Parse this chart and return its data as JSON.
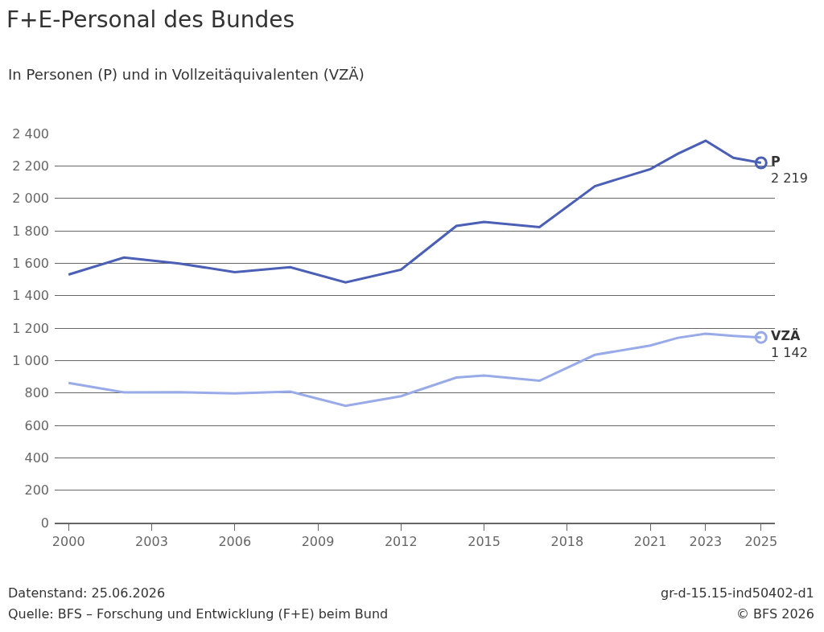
{
  "chart_data": {
    "type": "line",
    "title": "F+E-Personal des Bundes",
    "subtitle": "In Personen (P) und in Vollzeitäquivalenten (VZÄ)",
    "x": [
      2000,
      2002,
      2004,
      2006,
      2008,
      2010,
      2012,
      2014,
      2015,
      2017,
      2019,
      2021,
      2022,
      2023,
      2024,
      2025
    ],
    "series": [
      {
        "name": "P",
        "color": "#4a5fb5",
        "values": [
          1530,
          1635,
          1598,
          1545,
          1575,
          1482,
          1560,
          1830,
          1855,
          1822,
          2075,
          2180,
          2275,
          2355,
          2250,
          2219
        ],
        "value_labels": [
          null,
          null,
          null,
          null,
          null,
          null,
          null,
          null,
          null,
          null,
          null,
          null,
          null,
          null,
          null,
          "2 219"
        ]
      },
      {
        "name": "VZÄ",
        "color": "#98abe8",
        "values": [
          862,
          803,
          805,
          797,
          808,
          720,
          780,
          895,
          908,
          875,
          1035,
          1092,
          1140,
          1165,
          1152,
          1142
        ],
        "value_labels": [
          null,
          null,
          null,
          null,
          null,
          null,
          null,
          null,
          null,
          null,
          null,
          null,
          null,
          null,
          null,
          "1 142"
        ]
      }
    ],
    "xlim": [
      1999.5,
      2025.5
    ],
    "xticks": [
      2000,
      2003,
      2006,
      2009,
      2012,
      2015,
      2018,
      2021,
      2023,
      2025
    ],
    "ylim": [
      0,
      2400
    ],
    "yticks": [
      0,
      200,
      400,
      600,
      800,
      {
        "value": 1000,
        "label": "1 000"
      },
      {
        "value": 1200,
        "label": "1 200"
      },
      {
        "value": 1400,
        "label": "1 400"
      },
      {
        "value": 1600,
        "label": "1 600"
      },
      {
        "value": 1800,
        "label": "1 800"
      },
      {
        "value": 2000,
        "label": "2 000"
      },
      {
        "value": 2200,
        "label": "2 200"
      },
      {
        "value": 2400,
        "label": "2 400"
      }
    ],
    "grid": "y",
    "legend": false,
    "line_style": "solid",
    "annotations": [
      "Datenstand: 25.06.2026",
      "Quelle: BFS – Forschung und Entwicklung (F+E) beim Bund",
      "gr-d-15.15-ind50402-d1",
      "© BFS 2026"
    ]
  }
}
